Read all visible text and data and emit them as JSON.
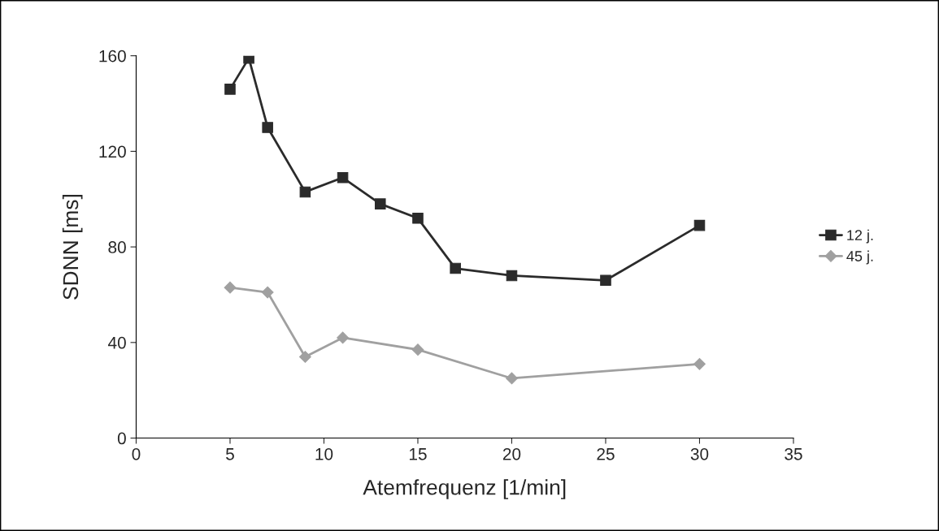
{
  "chart_data": {
    "type": "line",
    "xlabel": "Atemfrequenz [1/min]",
    "ylabel": "SDNN [ms]",
    "xlim": [
      0,
      35
    ],
    "xticks": [
      0,
      5,
      10,
      15,
      20,
      25,
      30,
      35
    ],
    "ylim": [
      0,
      160
    ],
    "yticks": [
      0,
      40,
      80,
      120,
      160
    ],
    "grid": false,
    "legend": "right",
    "series": [
      {
        "name": "12 j.",
        "color": "#2b2b2b",
        "marker": "square",
        "x": [
          5,
          6,
          7,
          9,
          11,
          13,
          15,
          17,
          20,
          25,
          30
        ],
        "values": [
          146,
          159,
          130,
          103,
          109,
          98,
          92,
          71,
          68,
          66,
          89
        ]
      },
      {
        "name": "45 j.",
        "color": "#a0a0a0",
        "marker": "diamond",
        "x": [
          5,
          7,
          9,
          11,
          15,
          20,
          30
        ],
        "values": [
          63,
          61,
          34,
          42,
          37,
          25,
          31
        ]
      }
    ]
  }
}
